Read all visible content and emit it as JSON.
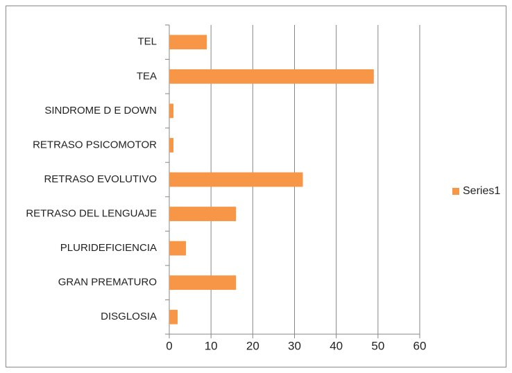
{
  "chart_data": {
    "type": "barh",
    "categories": [
      "TEL",
      "TEA",
      "SINDROME D E DOWN",
      "RETRASO PSICOMOTOR",
      "RETRASO EVOLUTIVO",
      "RETRASO DEL LENGUAJE",
      "PLURIDEFICIENCIA",
      "GRAN  PREMATURO",
      "DISGLOSIA"
    ],
    "series": [
      {
        "name": "Series1",
        "color": "#f79646",
        "values": [
          9,
          49,
          1,
          1,
          32,
          16,
          4,
          16,
          2
        ]
      }
    ],
    "xlim": [
      0,
      60
    ],
    "xticks": [
      0,
      10,
      20,
      30,
      40,
      50,
      60
    ],
    "grid": true,
    "legend": "right"
  }
}
